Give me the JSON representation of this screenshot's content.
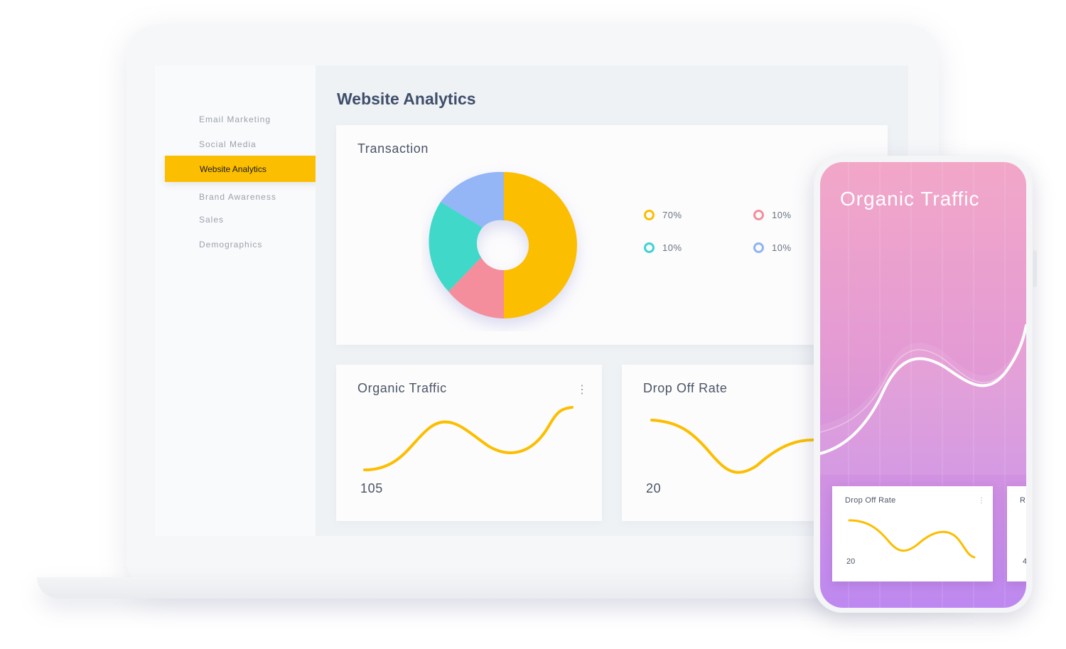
{
  "sidebar": {
    "items": [
      {
        "label": "Email Marketing"
      },
      {
        "label": "Social Media"
      },
      {
        "label": "Website Analytics",
        "active": true
      },
      {
        "label": "Brand Awareness"
      },
      {
        "label": "Sales"
      },
      {
        "label": "Demographics"
      }
    ]
  },
  "main": {
    "title": "Website Analytics",
    "transaction": {
      "title": "Transaction",
      "legend": [
        {
          "label": "70%",
          "color": "#fcbe00"
        },
        {
          "label": "10%",
          "color": "#f48e9c"
        },
        {
          "label": "10%",
          "color": "#3fd3d3"
        },
        {
          "label": "10%",
          "color": "#8fb4f5"
        }
      ]
    },
    "organic": {
      "title": "Organic Traffic",
      "value": "105"
    },
    "dropoff": {
      "title": "Drop Off Rate",
      "value": "20"
    }
  },
  "phone": {
    "title": "Organic Traffic",
    "card": {
      "title": "Drop Off Rate",
      "value": "20"
    },
    "partial_card": {
      "title": "R",
      "value": "4"
    }
  },
  "colors": {
    "accent": "#fcbe00",
    "text": "#4b5565",
    "muted": "#9aa1ad"
  }
}
